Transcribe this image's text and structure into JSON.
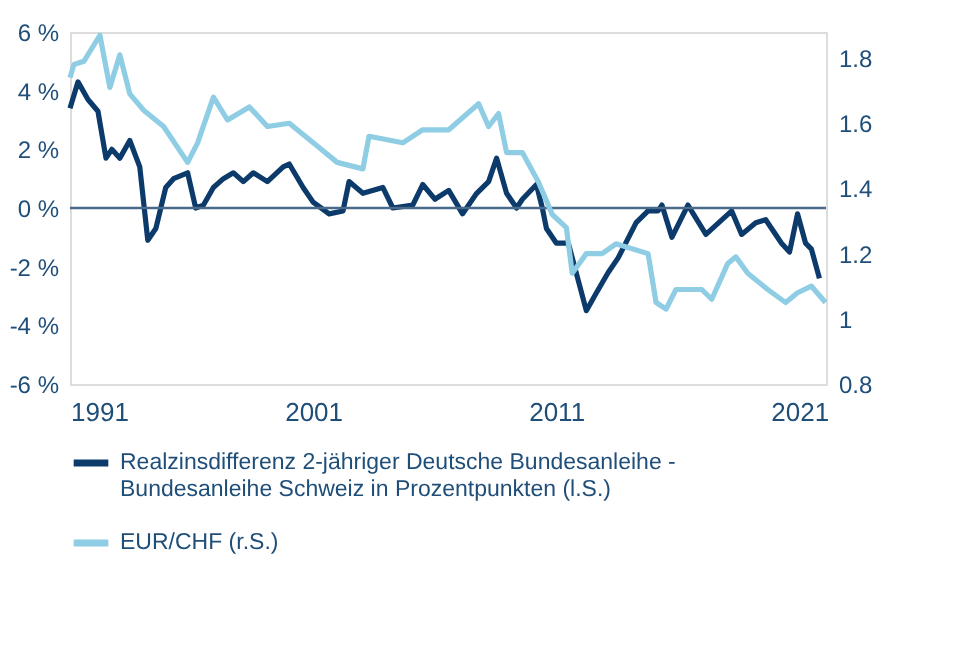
{
  "chart_data": {
    "type": "line",
    "xlim": [
      1991,
      2022.1
    ],
    "xticks": [
      1991,
      2001,
      2011,
      2021
    ],
    "ylim": [
      -6,
      6
    ],
    "yticks": [
      {
        "value": -6,
        "label": "-6 %"
      },
      {
        "value": -4,
        "label": "-4 %"
      },
      {
        "value": -2,
        "label": "-2 %"
      },
      {
        "value": 0,
        "label": "0 %"
      },
      {
        "value": 2,
        "label": "2 %"
      },
      {
        "value": 4,
        "label": "4 %"
      },
      {
        "value": 6,
        "label": "6 %"
      }
    ],
    "y2lim": [
      0.8,
      1.88
    ],
    "y2ticks": [
      0.8,
      1,
      1.2,
      1.4,
      1.6,
      1.8
    ],
    "legend": "bottom",
    "line_style": "solid",
    "marker": "none",
    "ref_lines": [
      {
        "axis": "y",
        "value": 0,
        "color": "#4a6a8a"
      }
    ],
    "series": [
      {
        "name": "Realzinsdifferenz 2-jähriger  Deutsche Bundesanleihe - Bundesanleihe Schweiz in Prozentpunkten (l.S.)",
        "color": "#0b3a6b",
        "axis": "y",
        "x": [
          1991.0,
          1991.33,
          1991.74,
          1992.15,
          1992.48,
          1992.72,
          1993.05,
          1993.46,
          1993.87,
          1994.2,
          1994.53,
          1994.94,
          1995.26,
          1995.84,
          1996.17,
          1996.49,
          1996.9,
          1997.31,
          1997.72,
          1998.13,
          1998.54,
          1999.12,
          1999.77,
          2000.02,
          2000.59,
          2001.0,
          2001.66,
          2002.23,
          2002.48,
          2003.05,
          2003.87,
          2004.28,
          2005.1,
          2005.51,
          2006.01,
          2006.58,
          2007.15,
          2007.73,
          2008.22,
          2008.55,
          2008.96,
          2009.37,
          2009.61,
          2010.19,
          2010.43,
          2010.6,
          2011.01,
          2011.5,
          2012.24,
          2012.65,
          2013.14,
          2013.55,
          2014.29,
          2014.78,
          2015.19,
          2015.35,
          2015.76,
          2016.42,
          2017.16,
          2018.22,
          2018.63,
          2019.21,
          2019.62,
          2020.27,
          2020.6,
          2020.93,
          2021.26,
          2021.5,
          2021.83
        ],
        "values": [
          3.4,
          4.3,
          3.7,
          3.3,
          1.7,
          2.0,
          1.7,
          2.3,
          1.4,
          -1.1,
          -0.7,
          0.7,
          1.0,
          1.2,
          0.0,
          0.1,
          0.7,
          1.0,
          1.2,
          0.9,
          1.2,
          0.9,
          1.4,
          1.5,
          0.7,
          0.2,
          -0.2,
          -0.1,
          0.9,
          0.5,
          0.7,
          0.0,
          0.1,
          0.8,
          0.3,
          0.6,
          -0.2,
          0.5,
          0.9,
          1.7,
          0.5,
          0.0,
          0.3,
          0.8,
          0.0,
          -0.7,
          -1.2,
          -1.2,
          -3.5,
          -2.9,
          -2.2,
          -1.7,
          -0.5,
          -0.1,
          -0.1,
          0.1,
          -1.0,
          0.1,
          -0.9,
          -0.1,
          -0.9,
          -0.5,
          -0.4,
          -1.2,
          -1.5,
          -0.2,
          -1.2,
          -1.4,
          -2.4
        ]
      },
      {
        "name": "EUR/CHF (r.S.)",
        "color": "#8ecde3",
        "axis": "y2",
        "x": [
          1991.0,
          1991.16,
          1991.57,
          1992.23,
          1992.64,
          1993.05,
          1993.46,
          1994.03,
          1994.85,
          1995.84,
          1996.25,
          1996.9,
          1997.48,
          1998.38,
          1999.12,
          2000.02,
          2001.17,
          2001.99,
          2003.05,
          2003.3,
          2004.69,
          2005.51,
          2006.58,
          2007.81,
          2008.22,
          2008.63,
          2008.96,
          2009.61,
          2010.27,
          2010.84,
          2011.42,
          2011.66,
          2012.24,
          2012.89,
          2013.46,
          2014.78,
          2015.11,
          2015.52,
          2015.93,
          2016.99,
          2017.4,
          2018.06,
          2018.39,
          2018.88,
          2019.7,
          2020.44,
          2020.93,
          2021.5,
          2022.08
        ],
        "values": [
          1.74,
          1.78,
          1.79,
          1.87,
          1.71,
          1.81,
          1.69,
          1.64,
          1.59,
          1.48,
          1.54,
          1.68,
          1.61,
          1.65,
          1.59,
          1.6,
          1.53,
          1.48,
          1.46,
          1.56,
          1.54,
          1.58,
          1.58,
          1.66,
          1.59,
          1.63,
          1.51,
          1.51,
          1.42,
          1.32,
          1.28,
          1.14,
          1.2,
          1.2,
          1.23,
          1.2,
          1.05,
          1.03,
          1.09,
          1.09,
          1.06,
          1.17,
          1.19,
          1.14,
          1.09,
          1.05,
          1.08,
          1.1,
          1.05
        ]
      }
    ]
  }
}
